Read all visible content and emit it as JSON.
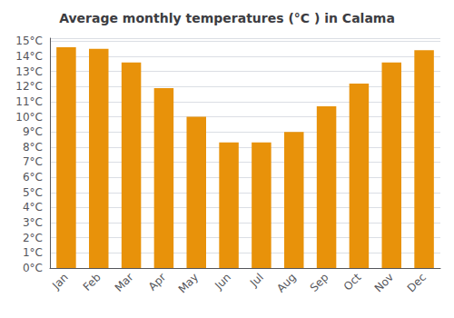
{
  "chart_data": {
    "type": "bar",
    "title": "Average monthly temperatures (°C ) in Calama",
    "categories": [
      "Jan",
      "Feb",
      "Mar",
      "Apr",
      "May",
      "Jun",
      "Jul",
      "Aug",
      "Sep",
      "Oct",
      "Nov",
      "Dec"
    ],
    "values": [
      14.6,
      14.5,
      13.6,
      11.9,
      10.0,
      8.3,
      8.3,
      9.0,
      10.7,
      12.2,
      13.6,
      14.4
    ],
    "color": "#E8920A",
    "ylim": [
      0,
      15.2
    ],
    "yticks": [
      {
        "value": 0,
        "label": "0°C"
      },
      {
        "value": 1,
        "label": "1°C"
      },
      {
        "value": 2,
        "label": "2°C"
      },
      {
        "value": 3,
        "label": "3°C"
      },
      {
        "value": 4,
        "label": "4°C"
      },
      {
        "value": 5,
        "label": "5°C"
      },
      {
        "value": 6,
        "label": "6°C"
      },
      {
        "value": 7,
        "label": "7°C"
      },
      {
        "value": 8,
        "label": "8°C"
      },
      {
        "value": 9,
        "label": "9°C"
      },
      {
        "value": 10,
        "label": "10°C"
      },
      {
        "value": 11,
        "label": "11°C"
      },
      {
        "value": 12,
        "label": "12°C"
      },
      {
        "value": 13,
        "label": "13°C"
      },
      {
        "value": 14,
        "label": "14°C"
      },
      {
        "value": 15,
        "label": "15°C"
      }
    ],
    "grid": true
  }
}
